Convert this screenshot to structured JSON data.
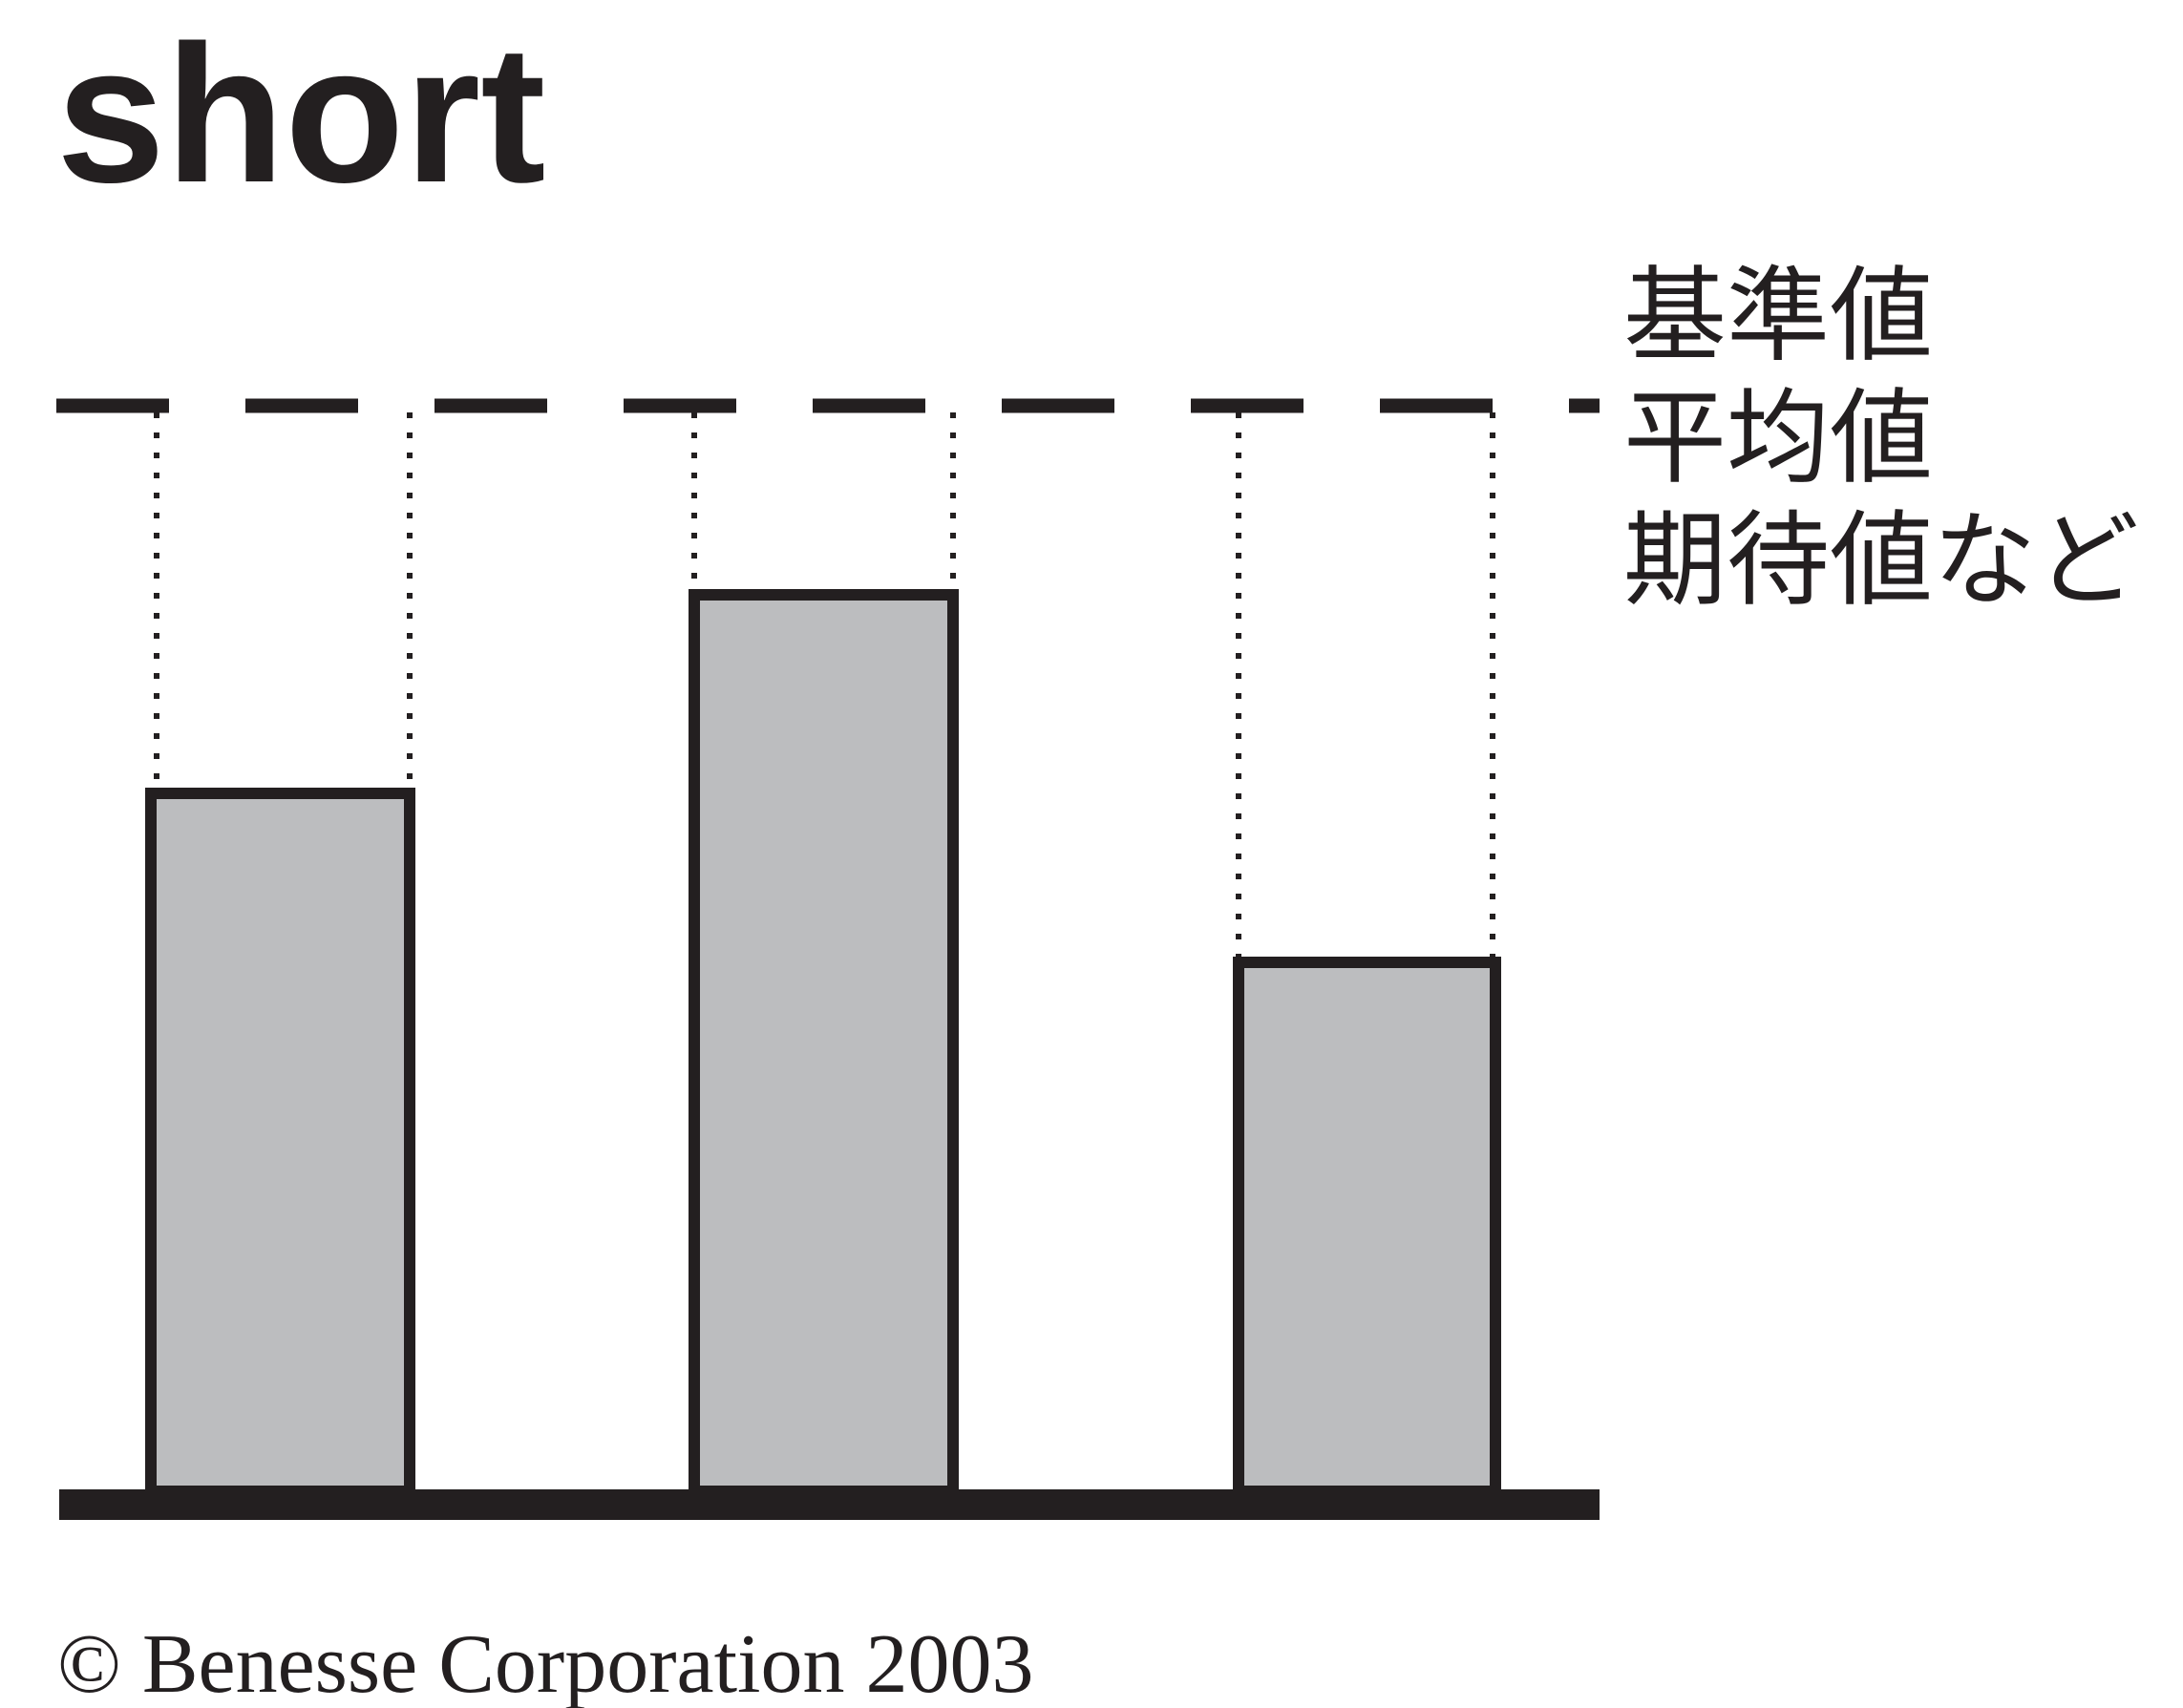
{
  "header": {
    "title": "short"
  },
  "legend": {
    "lines": [
      "基準値",
      "平均値",
      "期待値など"
    ]
  },
  "footer": {
    "copyright": "© Benesse Corporation 2003"
  }
}
